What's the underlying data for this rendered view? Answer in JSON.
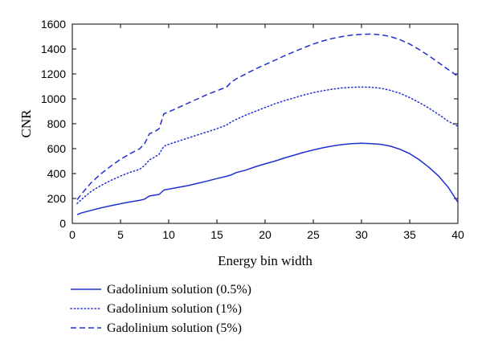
{
  "chart_data": {
    "type": "line",
    "xlabel": "Energy bin width",
    "ylabel": "CNR",
    "xlim": [
      0,
      40
    ],
    "ylim": [
      0,
      1600
    ],
    "xticks": [
      0,
      5,
      10,
      15,
      20,
      25,
      30,
      35,
      40
    ],
    "yticks": [
      0,
      200,
      400,
      600,
      800,
      1000,
      1200,
      1400,
      1600
    ],
    "grid": false,
    "legend_position": "bottom-left",
    "series_color": "#1f2fd0",
    "series": [
      {
        "name": "Gadolinium solution (0.5%)",
        "style": "solid",
        "points": [
          [
            0.5,
            70
          ],
          [
            1,
            85
          ],
          [
            2,
            105
          ],
          [
            3,
            125
          ],
          [
            4,
            142
          ],
          [
            5,
            158
          ],
          [
            6,
            172
          ],
          [
            7,
            185
          ],
          [
            7.5,
            195
          ],
          [
            8,
            220
          ],
          [
            9,
            232
          ],
          [
            9.5,
            268
          ],
          [
            10,
            275
          ],
          [
            11,
            290
          ],
          [
            12,
            303
          ],
          [
            13,
            322
          ],
          [
            14,
            340
          ],
          [
            15,
            360
          ],
          [
            16,
            378
          ],
          [
            16.5,
            390
          ],
          [
            17,
            408
          ],
          [
            18,
            428
          ],
          [
            19,
            455
          ],
          [
            20,
            478
          ],
          [
            21,
            500
          ],
          [
            22,
            525
          ],
          [
            23,
            548
          ],
          [
            24,
            570
          ],
          [
            25,
            590
          ],
          [
            26,
            607
          ],
          [
            27,
            622
          ],
          [
            28,
            633
          ],
          [
            29,
            640
          ],
          [
            30,
            643
          ],
          [
            31,
            640
          ],
          [
            32,
            635
          ],
          [
            33,
            620
          ],
          [
            34,
            595
          ],
          [
            35,
            560
          ],
          [
            36,
            510
          ],
          [
            37,
            450
          ],
          [
            38,
            380
          ],
          [
            39,
            290
          ],
          [
            40,
            170
          ]
        ]
      },
      {
        "name": "Gadolinium solution (1%)",
        "style": "dotted",
        "points": [
          [
            0.5,
            160
          ],
          [
            1,
            195
          ],
          [
            2,
            260
          ],
          [
            3,
            305
          ],
          [
            4,
            345
          ],
          [
            5,
            380
          ],
          [
            6,
            410
          ],
          [
            7,
            435
          ],
          [
            7.5,
            465
          ],
          [
            8,
            510
          ],
          [
            8.5,
            530
          ],
          [
            9,
            555
          ],
          [
            9.5,
            620
          ],
          [
            10,
            635
          ],
          [
            11,
            660
          ],
          [
            12,
            685
          ],
          [
            13,
            710
          ],
          [
            14,
            735
          ],
          [
            15,
            760
          ],
          [
            16,
            790
          ],
          [
            16.5,
            815
          ],
          [
            17,
            835
          ],
          [
            18,
            870
          ],
          [
            19,
            900
          ],
          [
            20,
            930
          ],
          [
            21,
            960
          ],
          [
            22,
            985
          ],
          [
            23,
            1008
          ],
          [
            24,
            1030
          ],
          [
            25,
            1050
          ],
          [
            26,
            1065
          ],
          [
            27,
            1078
          ],
          [
            28,
            1088
          ],
          [
            29,
            1093
          ],
          [
            30,
            1095
          ],
          [
            31,
            1093
          ],
          [
            32,
            1085
          ],
          [
            33,
            1068
          ],
          [
            34,
            1045
          ],
          [
            35,
            1010
          ],
          [
            36,
            970
          ],
          [
            37,
            925
          ],
          [
            38,
            875
          ],
          [
            39,
            820
          ],
          [
            40,
            780
          ]
        ]
      },
      {
        "name": "Gadolinium solution (5%)",
        "style": "dashed",
        "points": [
          [
            0.5,
            190
          ],
          [
            1,
            240
          ],
          [
            2,
            330
          ],
          [
            3,
            400
          ],
          [
            4,
            460
          ],
          [
            5,
            515
          ],
          [
            6,
            560
          ],
          [
            7,
            600
          ],
          [
            7.5,
            640
          ],
          [
            8,
            720
          ],
          [
            8.5,
            735
          ],
          [
            9,
            760
          ],
          [
            9.5,
            880
          ],
          [
            10,
            895
          ],
          [
            11,
            930
          ],
          [
            12,
            965
          ],
          [
            13,
            1000
          ],
          [
            14,
            1035
          ],
          [
            15,
            1065
          ],
          [
            16,
            1095
          ],
          [
            16.5,
            1135
          ],
          [
            17,
            1160
          ],
          [
            18,
            1200
          ],
          [
            19,
            1240
          ],
          [
            20,
            1275
          ],
          [
            21,
            1310
          ],
          [
            22,
            1345
          ],
          [
            23,
            1378
          ],
          [
            24,
            1410
          ],
          [
            25,
            1440
          ],
          [
            26,
            1465
          ],
          [
            27,
            1485
          ],
          [
            28,
            1500
          ],
          [
            29,
            1512
          ],
          [
            30,
            1518
          ],
          [
            31,
            1520
          ],
          [
            32,
            1515
          ],
          [
            33,
            1500
          ],
          [
            34,
            1475
          ],
          [
            35,
            1440
          ],
          [
            36,
            1395
          ],
          [
            37,
            1345
          ],
          [
            38,
            1290
          ],
          [
            39,
            1235
          ],
          [
            40,
            1180
          ]
        ]
      }
    ]
  }
}
